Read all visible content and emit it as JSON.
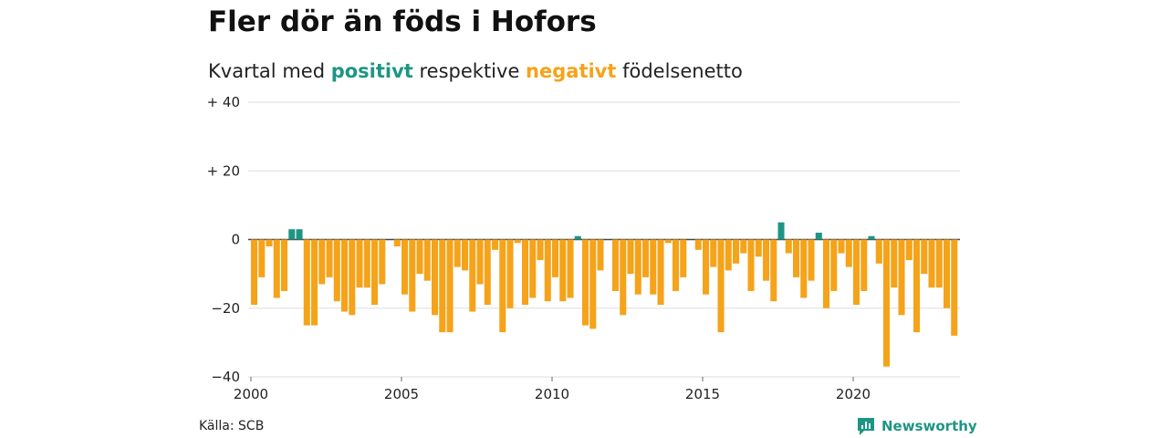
{
  "title": "Fler dör än föds i Hofors",
  "subtitle": {
    "pre": "Kvartal med ",
    "positive": "positivt",
    "mid": " respektive ",
    "negative": "negativt",
    "post": " födelsenetto"
  },
  "source": "Källa: SCB",
  "brand": "Newsworthy",
  "colors": {
    "positive": "#1e9584",
    "negative": "#f5a31a",
    "grid": "#dddddd",
    "zero": "#444444"
  },
  "chart_data": {
    "type": "bar",
    "x_start_year": 2000,
    "periods_per_year": 4,
    "ylim": [
      -40,
      40
    ],
    "y_ticks": [
      {
        "value": 40,
        "label": "+ 40"
      },
      {
        "value": 20,
        "label": "+ 20"
      },
      {
        "value": 0,
        "label": "0"
      },
      {
        "value": -20,
        "label": "−20"
      },
      {
        "value": -40,
        "label": "−40"
      }
    ],
    "x_ticks": [
      "2000",
      "2005",
      "2010",
      "2015",
      "2020"
    ],
    "values": [
      -19,
      -11,
      -2,
      -17,
      -15,
      3,
      3,
      -25,
      -25,
      -13,
      -11,
      -18,
      -21,
      -22,
      -14,
      -14,
      -19,
      -13,
      0,
      -2,
      -16,
      -21,
      -10,
      -12,
      -22,
      -27,
      -27,
      -8,
      -9,
      -21,
      -13,
      -19,
      -3,
      -27,
      -20,
      -1,
      -19,
      -17,
      -6,
      -18,
      -11,
      -18,
      -17,
      1,
      -25,
      -26,
      -9,
      0,
      -15,
      -22,
      -10,
      -16,
      -11,
      -16,
      -19,
      -1,
      -15,
      -11,
      0,
      -3,
      -16,
      -8,
      -27,
      -9,
      -7,
      -4,
      -15,
      -5,
      -12,
      -18,
      5,
      -4,
      -11,
      -17,
      -12,
      2,
      -20,
      -15,
      -4,
      -8,
      -19,
      -15,
      1,
      -7,
      -37,
      -14,
      -22,
      -6,
      -27,
      -10,
      -14,
      -14,
      -20,
      -28
    ]
  }
}
